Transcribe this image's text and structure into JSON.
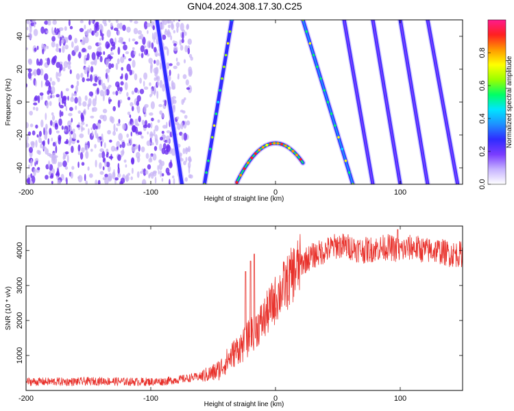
{
  "figure": {
    "title": "GN04.2024.308.17.30.C25"
  },
  "chart_data": [
    {
      "type": "heatmap",
      "xlabel": "Height of straight line (km)",
      "ylabel": "Frequency (Hz)",
      "xlim": [
        -200,
        150
      ],
      "ylim": [
        -50,
        50
      ],
      "xticks": [
        -200,
        -100,
        0,
        100
      ],
      "yticks": [
        -40,
        -20,
        0,
        20,
        40
      ],
      "colorbar": {
        "label": "Normalized spectral amplitude",
        "range": [
          0,
          1
        ],
        "ticks": [
          "0.0",
          "0.2",
          "0.4",
          "0.6",
          "0.8"
        ],
        "colors": [
          "#ffffff",
          "#c6b3ff",
          "#7a3cff",
          "#2f2bff",
          "#1e90ff",
          "#00e5ff",
          "#00ff66",
          "#9aff00",
          "#ffff00",
          "#ff9900",
          "#ff2020",
          "#ff1a8c"
        ]
      },
      "noise_region": {
        "x_from": -200,
        "x_to": -75,
        "intensity": 0.3
      },
      "curves": [
        {
          "kind": "parabola",
          "x_from": -31,
          "x_to": 22,
          "vertex_x": 0,
          "vertex_y": -25,
          "coef": 0.0248,
          "intensity": 0.85
        },
        {
          "kind": "line",
          "points": [
            [
              -95,
              50
            ],
            [
              -75,
              -50
            ]
          ],
          "intensity": 0.45
        },
        {
          "kind": "line",
          "points": [
            [
              -35,
              50
            ],
            [
              -57,
              -50
            ]
          ],
          "intensity": 0.5
        },
        {
          "kind": "line",
          "points": [
            [
              22,
              50
            ],
            [
              62,
              -50
            ]
          ],
          "intensity": 0.55
        },
        {
          "kind": "line",
          "points": [
            [
              55,
              50
            ],
            [
              78,
              -50
            ]
          ],
          "intensity": 0.35
        },
        {
          "kind": "line",
          "points": [
            [
              78,
              50
            ],
            [
              100,
              -50
            ]
          ],
          "intensity": 0.35
        },
        {
          "kind": "line",
          "points": [
            [
              100,
              50
            ],
            [
              122,
              -50
            ]
          ],
          "intensity": 0.35
        },
        {
          "kind": "line",
          "points": [
            [
              122,
              50
            ],
            [
              146,
              -50
            ]
          ],
          "intensity": 0.35
        }
      ]
    },
    {
      "type": "line",
      "xlabel": "Height of straight line (km)",
      "ylabel": "SNR (10 * v/v)",
      "xlim": [
        -200,
        150
      ],
      "ylim": [
        0,
        4700
      ],
      "xticks": [
        -200,
        -100,
        0,
        100
      ],
      "yticks": [
        1000,
        2000,
        3000,
        4000
      ],
      "color": "#e8302a",
      "series": [
        {
          "x": [
            -200,
            -180,
            -160,
            -140,
            -120,
            -100,
            -90,
            -80,
            -70,
            -60,
            -50,
            -45,
            -40,
            -35,
            -30,
            -25,
            -20,
            -15,
            -10,
            -5,
            0,
            5,
            10,
            15,
            20,
            25,
            30,
            40,
            50,
            60,
            70,
            80,
            90,
            100,
            110,
            120,
            130,
            140,
            150
          ],
          "y": [
            250,
            250,
            250,
            270,
            250,
            250,
            260,
            300,
            350,
            400,
            500,
            600,
            800,
            1000,
            1200,
            1300,
            1600,
            1800,
            2000,
            2300,
            2600,
            2900,
            3100,
            3400,
            3600,
            3750,
            3850,
            4000,
            4150,
            4100,
            4000,
            4050,
            4100,
            4000,
            4100,
            4000,
            4000,
            3900,
            3900
          ]
        }
      ],
      "spikes": [
        {
          "x": -17,
          "y": 3900
        },
        {
          "x": -20,
          "y": 3700
        },
        {
          "x": -24,
          "y": 3400
        },
        {
          "x": 98,
          "y": 4600
        }
      ]
    }
  ]
}
